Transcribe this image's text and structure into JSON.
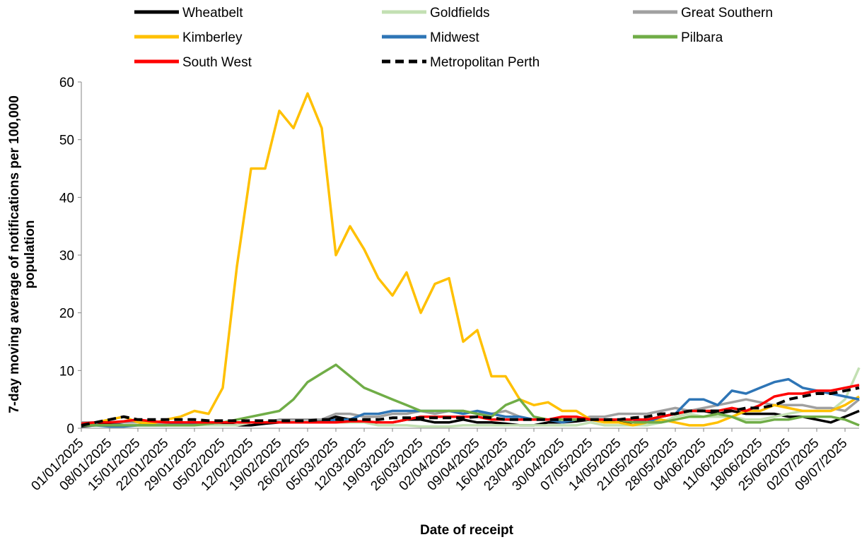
{
  "chart_data": {
    "type": "line",
    "ylabel": [
      "7-day moving average of notifications per 100,000",
      "population"
    ],
    "xlabel": "Date of receipt",
    "categories": [
      "01/01/2025",
      null,
      "08/01/2025",
      null,
      "15/01/2025",
      null,
      "22/01/2025",
      null,
      "29/01/2025",
      null,
      "05/02/2025",
      null,
      "12/02/2025",
      null,
      "19/02/2025",
      null,
      "26/02/2025",
      null,
      "05/03/2025",
      null,
      "12/03/2025",
      null,
      "19/03/2025",
      null,
      "26/03/2025",
      null,
      "02/04/2025",
      null,
      "09/04/2025",
      null,
      "16/04/2025",
      null,
      "23/04/2025",
      null,
      "30/04/2025",
      null,
      "07/05/2025",
      null,
      "14/05/2025",
      null,
      "21/05/2025",
      null,
      "28/05/2025",
      null,
      "04/06/2025",
      null,
      "11/06/2025",
      null,
      "18/06/2025",
      null,
      "25/06/2025",
      null,
      "02/07/2025",
      null,
      "09/07/2025",
      null
    ],
    "ylim": [
      0,
      60
    ],
    "yticks": [
      0,
      10,
      20,
      30,
      40,
      50,
      60
    ],
    "series": [
      {
        "name": "Wheatbelt",
        "color": "#000000",
        "dashed": false,
        "values": [
          0.3,
          0.5,
          0.8,
          1,
          1,
          0.8,
          0.8,
          1,
          1,
          0.8,
          0.8,
          0.5,
          0.5,
          0.8,
          1,
          1,
          1,
          1.2,
          2,
          1.5,
          1,
          1,
          1,
          1.5,
          1.5,
          1,
          1,
          1.5,
          1,
          1,
          0.8,
          0.5,
          0.5,
          1,
          1,
          1.2,
          1.5,
          1.2,
          1,
          1,
          1.5,
          2,
          2.5,
          3,
          3,
          2.5,
          3,
          2.5,
          2.5,
          2.5,
          2,
          2,
          1.5,
          1,
          2,
          3
        ]
      },
      {
        "name": "Goldfields",
        "color": "#c3e0b3",
        "dashed": false,
        "values": [
          0.5,
          0.5,
          0.5,
          0.5,
          0.5,
          0.5,
          0.5,
          0.5,
          0.5,
          0.5,
          0.5,
          0.5,
          1,
          1,
          1,
          1,
          1,
          1,
          1,
          1,
          1,
          0.5,
          0.5,
          0.5,
          0.3,
          0.3,
          0.3,
          0.5,
          0.5,
          0.5,
          0.5,
          0.5,
          0.5,
          0.5,
          0.5,
          0.5,
          1,
          0.5,
          0.5,
          0.5,
          0.5,
          1,
          2,
          2.5,
          2,
          2,
          2,
          1.5,
          1.5,
          2,
          2.5,
          3,
          3,
          3,
          5,
          10.5
        ]
      },
      {
        "name": "Great Southern",
        "color": "#a0a0a0",
        "dashed": false,
        "values": [
          1,
          1,
          1,
          1,
          1,
          1,
          0.8,
          0.8,
          1,
          1,
          1,
          1,
          1,
          1,
          1.5,
          1.5,
          1.5,
          1.5,
          2.5,
          2.5,
          2,
          2,
          2.5,
          2.5,
          3,
          2.5,
          3,
          3,
          2.5,
          2.5,
          3,
          2,
          1.5,
          1.5,
          1.5,
          1.5,
          2,
          2,
          2.5,
          2.5,
          2.5,
          3,
          3.5,
          3,
          3.5,
          4,
          4.5,
          5,
          4.5,
          4,
          4,
          4,
          3.5,
          3.5,
          3,
          5
        ]
      },
      {
        "name": "Kimberley",
        "color": "#ffc000",
        "dashed": false,
        "values": [
          0.5,
          1,
          1.5,
          2,
          1,
          0.8,
          1.5,
          2,
          3,
          2.5,
          7,
          28,
          45,
          45,
          55,
          52,
          58,
          52,
          30,
          35,
          31,
          26,
          23,
          27,
          20,
          25,
          26,
          15,
          17,
          9,
          9,
          5,
          4,
          4.5,
          3,
          3,
          1.5,
          1,
          1,
          0.5,
          1,
          1.5,
          1,
          0.5,
          0.5,
          1,
          2,
          3,
          3,
          4,
          3.5,
          3,
          3,
          3,
          4,
          5.5
        ]
      },
      {
        "name": "Midwest",
        "color": "#2e75b6",
        "dashed": false,
        "values": [
          0.5,
          0.5,
          0.3,
          0.3,
          0.5,
          0.5,
          0.5,
          0.8,
          0.8,
          0.8,
          1,
          1,
          1,
          1,
          1,
          1,
          1,
          1,
          1.5,
          1.5,
          2.5,
          2.5,
          3,
          3,
          3,
          3,
          3,
          2.5,
          3,
          2.5,
          2,
          2,
          1.5,
          1.5,
          1,
          1.5,
          1.5,
          1.5,
          1.5,
          1.5,
          1,
          2,
          2.5,
          5,
          5,
          4,
          6.5,
          6,
          7,
          8,
          8.5,
          7,
          6.5,
          6,
          5.5,
          5
        ]
      },
      {
        "name": "Pilbara",
        "color": "#70ad47",
        "dashed": false,
        "values": [
          0.5,
          0.5,
          0.5,
          0.5,
          0.5,
          0.5,
          0.5,
          0.5,
          0.5,
          0.8,
          1,
          1.5,
          2,
          2.5,
          3,
          5,
          8,
          9.5,
          11,
          9,
          7,
          6,
          5,
          4,
          3,
          3,
          3,
          3,
          2.5,
          2,
          4,
          5,
          2,
          1.5,
          1.5,
          1.5,
          1.5,
          1.5,
          1.5,
          1,
          1,
          1,
          1.5,
          2,
          2,
          2.5,
          2,
          1,
          1,
          1.5,
          1.5,
          2,
          2,
          2,
          1.5,
          0.5
        ]
      },
      {
        "name": "South West",
        "color": "#ff0000",
        "dashed": false,
        "values": [
          0.8,
          1,
          1,
          1.2,
          1.5,
          1.2,
          1,
          1,
          1,
          1,
          1,
          1,
          1,
          1,
          1,
          1,
          1,
          1,
          1,
          1.2,
          1.2,
          1,
          1,
          1.5,
          2,
          2,
          2,
          2,
          2,
          1.5,
          1.5,
          1.5,
          1.5,
          1.5,
          2,
          2,
          1.5,
          1.5,
          1.5,
          1.5,
          1.5,
          2,
          2.5,
          3,
          3,
          3,
          3.5,
          3,
          4,
          5.5,
          6,
          6,
          6.5,
          6.5,
          7,
          7.5
        ]
      },
      {
        "name": "Metropolitan Perth",
        "color": "#000000",
        "dashed": true,
        "values": [
          0.5,
          1,
          1.5,
          2,
          1.5,
          1.5,
          1.5,
          1.5,
          1.5,
          1.3,
          1.3,
          1.3,
          1.3,
          1.3,
          1.3,
          1.3,
          1.3,
          1.5,
          1.5,
          1.5,
          1.5,
          1.5,
          1.8,
          1.8,
          1.8,
          1.8,
          1.8,
          1.8,
          2,
          1.8,
          1.5,
          1.5,
          1.5,
          1.5,
          1.5,
          1.5,
          1.5,
          1.5,
          1.5,
          1.8,
          2,
          2.5,
          2.5,
          3,
          3,
          3,
          3,
          3.5,
          3.5,
          4,
          5,
          5.5,
          6,
          6,
          6.5,
          7
        ]
      }
    ]
  }
}
